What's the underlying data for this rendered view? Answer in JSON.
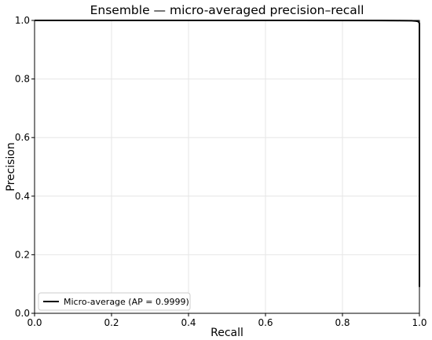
{
  "chart_data": {
    "type": "line",
    "title": "Ensemble — micro-averaged precision–recall",
    "xlabel": "Recall",
    "ylabel": "Precision",
    "xlim": [
      0.0,
      1.0
    ],
    "ylim": [
      0.0,
      1.0
    ],
    "x_ticks": [
      "0.0",
      "0.2",
      "0.4",
      "0.6",
      "0.8",
      "1.0"
    ],
    "y_ticks": [
      "0.0",
      "0.2",
      "0.4",
      "0.6",
      "0.8",
      "1.0"
    ],
    "grid": true,
    "legend_position": "lower-left",
    "series": [
      {
        "name": "Micro-average (AP = 0.9999)",
        "color": "#000000",
        "x": [
          0.0,
          0.5,
          0.9,
          0.95,
          0.98,
          0.99,
          0.995,
          0.998,
          1.0,
          1.0,
          1.0
        ],
        "y": [
          1.0,
          1.0,
          0.9998,
          0.9995,
          0.999,
          0.998,
          0.997,
          0.995,
          0.99,
          0.5,
          0.09
        ]
      }
    ]
  }
}
